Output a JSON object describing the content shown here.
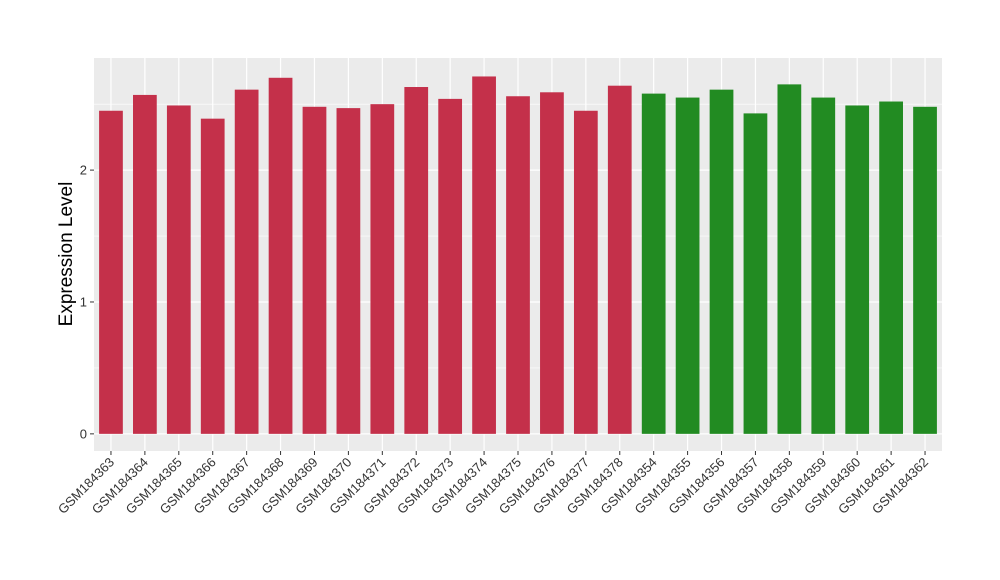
{
  "chart_data": {
    "type": "bar",
    "title": "",
    "xlabel": "",
    "ylabel": "Expression Level",
    "ylim": [
      -0.13,
      2.85
    ],
    "yticks": [
      0,
      1,
      2
    ],
    "grid": true,
    "legend": "none",
    "categories": [
      "GSM184363",
      "GSM184364",
      "GSM184365",
      "GSM184366",
      "GSM184367",
      "GSM184368",
      "GSM184369",
      "GSM184370",
      "GSM184371",
      "GSM184372",
      "GSM184373",
      "GSM184374",
      "GSM184375",
      "GSM184376",
      "GSM184377",
      "GSM184378",
      "GSM184354",
      "GSM184355",
      "GSM184356",
      "GSM184357",
      "GSM184358",
      "GSM184359",
      "GSM184360",
      "GSM184361",
      "GSM184362"
    ],
    "values": [
      2.45,
      2.57,
      2.49,
      2.39,
      2.61,
      2.7,
      2.48,
      2.47,
      2.5,
      2.63,
      2.54,
      2.71,
      2.56,
      2.59,
      2.45,
      2.64,
      2.58,
      2.55,
      2.61,
      2.43,
      2.65,
      2.55,
      2.49,
      2.52,
      2.48
    ],
    "groups": [
      "a",
      "a",
      "a",
      "a",
      "a",
      "a",
      "a",
      "a",
      "a",
      "a",
      "a",
      "a",
      "a",
      "a",
      "a",
      "a",
      "b",
      "b",
      "b",
      "b",
      "b",
      "b",
      "b",
      "b",
      "b"
    ],
    "group_colors": {
      "a": "#c4304a",
      "b": "#228b22"
    },
    "panel_background": "#ebebeb",
    "grid_color": "#ffffff"
  }
}
